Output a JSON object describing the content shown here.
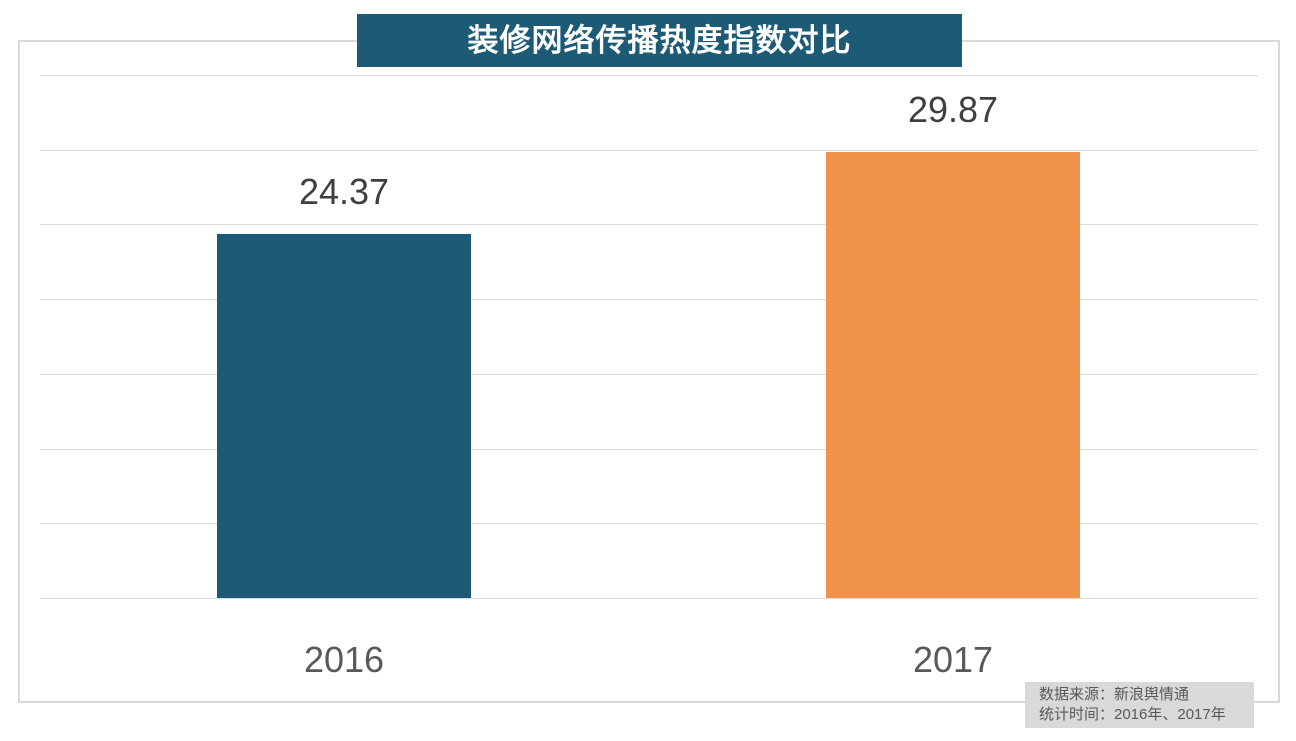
{
  "title_banner": {
    "text": "装修网络传播热度指数对比"
  },
  "source_note": {
    "line1": "数据来源：新浪舆情通",
    "line2": "统计时间：2016年、2017年"
  },
  "chart_data": {
    "type": "bar",
    "title": "装修网络传播热度指数对比",
    "categories": [
      "2016",
      "2017"
    ],
    "values": [
      24.37,
      29.87
    ],
    "value_labels": [
      "24.37",
      "29.87"
    ],
    "bar_colors": [
      "#1c5a76",
      "#f0924a"
    ],
    "xlabel": "",
    "ylabel": "",
    "ylim": [
      0,
      35
    ],
    "gridline_step": 5,
    "grid": true,
    "legend_position": "none",
    "annotations": [
      "数据来源：新浪舆情通",
      "统计时间：2016年、2017年"
    ]
  },
  "colors": {
    "banner_bg": "#1c5a76",
    "banner_text": "#ffffff",
    "bar_2016": "#1c5a76",
    "bar_2017": "#f0924a",
    "gridline": "#dcdcdc",
    "frame_border": "#d9d9d9",
    "value_label_text": "#3f3f3f",
    "category_label_text": "#595959",
    "note_bg": "#d9d9d9",
    "note_text": "#595959",
    "background": "#ffffff"
  }
}
